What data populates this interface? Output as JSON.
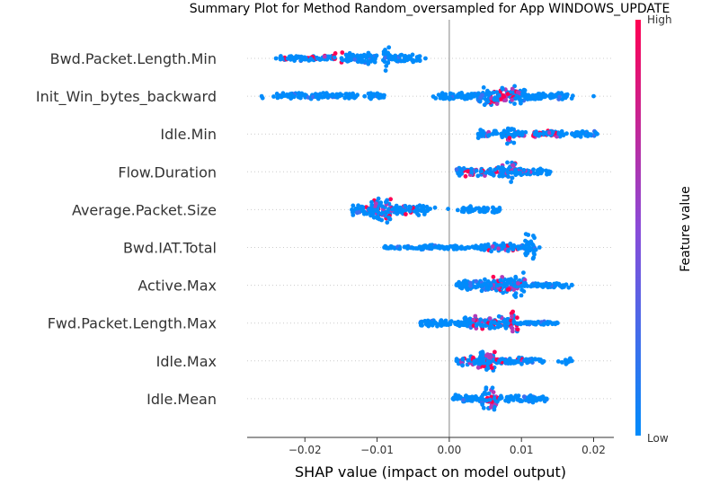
{
  "chart_data": {
    "type": "scatter",
    "subtype": "shap-beeswarm",
    "title": "Summary Plot for Method Random_oversampled for App WINDOWS_UPDATE",
    "xlabel": "SHAP value (impact on model output)",
    "xlim": [
      -0.028,
      0.0228
    ],
    "xticks": [
      -0.02,
      -0.01,
      0.0,
      0.01,
      0.02
    ],
    "xtick_labels": [
      "−0.02",
      "−0.01",
      "0.00",
      "0.01",
      "0.02"
    ],
    "colorbar": {
      "label": "Feature value",
      "high": "High",
      "low": "Low",
      "high_color": "#ff0052",
      "low_color": "#008bfb"
    },
    "features": [
      {
        "name": "Bwd.Packet.Length.Min",
        "dense": [
          [
            -0.0235,
            -0.016,
            0.25,
            0.2
          ],
          [
            -0.016,
            -0.01,
            0.45,
            0.35
          ],
          [
            -0.0092,
            -0.0082,
            1.0,
            0.3
          ],
          [
            -0.0082,
            -0.004,
            0.35,
            0.15
          ]
        ],
        "spread": [
          -0.024,
          -0.0033
        ],
        "high": [
          -0.0235,
          -0.014
        ]
      },
      {
        "name": "Init_Win_bytes_backward",
        "dense": [
          [
            -0.024,
            -0.0125,
            0.25,
            0.15
          ],
          [
            -0.0112,
            -0.0088,
            0.3,
            0.05
          ],
          [
            -0.002,
            0.004,
            0.3,
            0.2
          ],
          [
            0.004,
            0.0105,
            0.8,
            0.55
          ],
          [
            0.0105,
            0.0165,
            0.3,
            0.15
          ]
        ],
        "spread": [
          -0.026,
          0.02
        ],
        "high": [
          0.0055,
          0.01
        ]
      },
      {
        "name": "Idle.Min",
        "dense": [
          [
            0.004,
            0.008,
            0.35,
            0.2
          ],
          [
            0.008,
            0.009,
            1.0,
            0.2
          ],
          [
            0.009,
            0.016,
            0.25,
            0.35
          ],
          [
            0.017,
            0.0205,
            0.25,
            0.05
          ]
        ],
        "spread": [
          0.004,
          0.0205
        ],
        "high": [
          0.005,
          0.015
        ]
      },
      {
        "name": "Flow.Duration",
        "dense": [
          [
            0.001,
            0.006,
            0.35,
            0.3
          ],
          [
            0.006,
            0.008,
            0.55,
            0.35
          ],
          [
            0.008,
            0.0092,
            1.0,
            0.3
          ],
          [
            0.0092,
            0.014,
            0.3,
            0.25
          ]
        ],
        "spread": [
          0.0015,
          0.014
        ],
        "high": [
          0.002,
          0.012
        ]
      },
      {
        "name": "Average.Packet.Size",
        "dense": [
          [
            -0.0135,
            -0.011,
            0.45,
            0.4
          ],
          [
            -0.011,
            -0.008,
            1.0,
            0.35
          ],
          [
            -0.008,
            -0.003,
            0.45,
            0.35
          ],
          [
            0.0015,
            0.007,
            0.3,
            0.05
          ]
        ],
        "spread": [
          -0.0135,
          0.007
        ],
        "high": [
          -0.012,
          -0.005
        ]
      },
      {
        "name": "Bwd.IAT.Total",
        "dense": [
          [
            -0.009,
            -0.006,
            0.15,
            0.1
          ],
          [
            -0.006,
            -0.002,
            0.2,
            0.05
          ],
          [
            -0.002,
            0.004,
            0.15,
            0.1
          ],
          [
            0.004,
            0.0105,
            0.35,
            0.4
          ],
          [
            0.0105,
            0.012,
            1.0,
            0.1
          ]
        ],
        "spread": [
          -0.009,
          0.0125
        ],
        "high": [
          0.005,
          0.0095
        ]
      },
      {
        "name": "Active.Max",
        "dense": [
          [
            0.001,
            0.006,
            0.45,
            0.2
          ],
          [
            0.006,
            0.009,
            0.7,
            0.2
          ],
          [
            0.009,
            0.0105,
            1.0,
            0.3
          ],
          [
            0.0105,
            0.017,
            0.2,
            0.1
          ]
        ],
        "spread": [
          0.001,
          0.017
        ],
        "high": [
          0.006,
          0.011
        ]
      },
      {
        "name": "Fwd.Packet.Length.Max",
        "dense": [
          [
            -0.004,
            0.002,
            0.3,
            0.2
          ],
          [
            0.002,
            0.0085,
            0.55,
            0.35
          ],
          [
            0.0085,
            0.0095,
            1.0,
            0.55
          ],
          [
            0.0095,
            0.015,
            0.15,
            0.1
          ]
        ],
        "spread": [
          -0.004,
          0.015
        ],
        "high": [
          0.003,
          0.0095
        ]
      },
      {
        "name": "Idle.Max",
        "dense": [
          [
            0.001,
            0.004,
            0.35,
            0.35
          ],
          [
            0.004,
            0.0065,
            0.85,
            0.4
          ],
          [
            0.0065,
            0.013,
            0.3,
            0.3
          ],
          [
            0.016,
            0.0168,
            0.3,
            0.9
          ]
        ],
        "spread": [
          0.001,
          0.017
        ],
        "high": [
          0.0015,
          0.011
        ]
      },
      {
        "name": "Idle.Mean",
        "dense": [
          [
            0.0005,
            0.0045,
            0.35,
            0.15
          ],
          [
            0.0045,
            0.0065,
            1.0,
            0.35
          ],
          [
            0.0065,
            0.0135,
            0.3,
            0.15
          ]
        ],
        "spread": [
          0.0005,
          0.0135
        ],
        "high": [
          0.005,
          0.007
        ]
      }
    ]
  }
}
